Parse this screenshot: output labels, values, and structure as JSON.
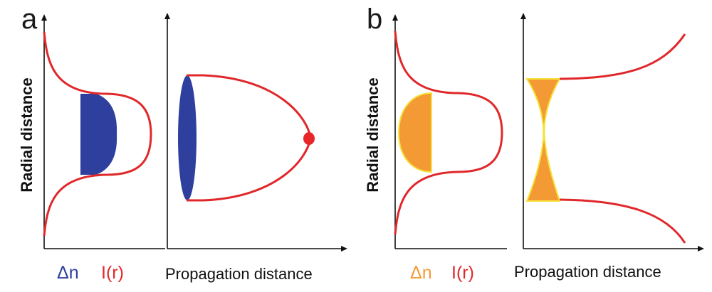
{
  "panels": {
    "a": {
      "label": "a",
      "ylabel": "Radial distance",
      "xlabel": "Propagation distance",
      "legend": {
        "delta_n": "Δn",
        "intensity": "I(r)"
      }
    },
    "b": {
      "label": "b",
      "ylabel": "Radial distance",
      "xlabel": "Propagation distance",
      "legend": {
        "delta_n": "Δn",
        "intensity": "I(r)"
      }
    }
  },
  "colors": {
    "axis": "#111111",
    "beam_curve": "#e0282b",
    "index_change_a": "#2f3f9e",
    "index_change_b": "#f49a35",
    "index_outline_b": "#f5e23a",
    "focus_point": "#e8262a"
  }
}
